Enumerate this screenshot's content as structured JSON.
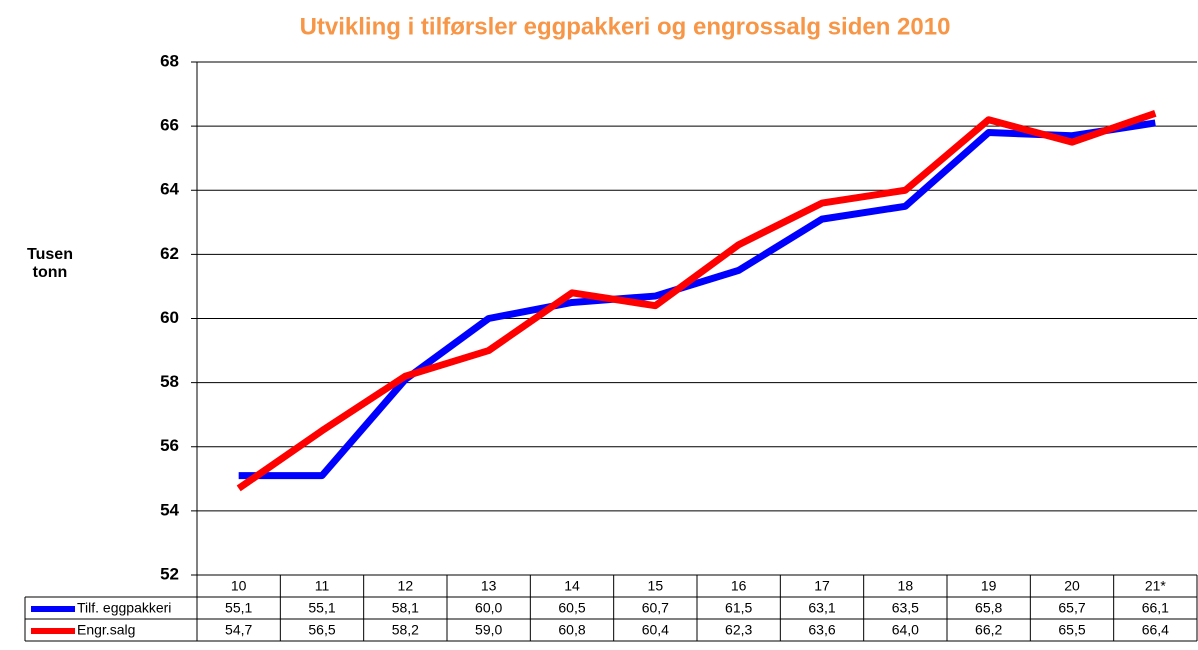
{
  "chart_data": {
    "type": "line",
    "title": "Utvikling i tilførsler eggpakkeri og engrossalg siden 2010",
    "y_label": "Tusen tonn",
    "categories": [
      "10",
      "11",
      "12",
      "13",
      "14",
      "15",
      "16",
      "17",
      "18",
      "19",
      "20",
      "21*"
    ],
    "series": [
      {
        "name": "Tilf. eggpakkeri",
        "color": "#0000ff",
        "values": [
          55.1,
          55.1,
          58.1,
          60.0,
          60.5,
          60.7,
          61.5,
          63.1,
          63.5,
          65.8,
          65.7,
          66.1
        ],
        "value_labels": [
          "55,1",
          "55,1",
          "58,1",
          "60,0",
          "60,5",
          "60,7",
          "61,5",
          "63,1",
          "63,5",
          "65,8",
          "65,7",
          "66,1"
        ]
      },
      {
        "name": "Engr.salg",
        "color": "#ff0000",
        "values": [
          54.7,
          56.5,
          58.2,
          59.0,
          60.8,
          60.4,
          62.3,
          63.6,
          64.0,
          66.2,
          65.5,
          66.4
        ],
        "value_labels": [
          "54,7",
          "56,5",
          "58,2",
          "59,0",
          "60,8",
          "60,4",
          "62,3",
          "63,6",
          "64,0",
          "66,2",
          "65,5",
          "66,4"
        ]
      }
    ],
    "ylim": [
      52,
      68
    ],
    "yticks": [
      52,
      54,
      56,
      58,
      60,
      62,
      64,
      66,
      68
    ],
    "grid": true,
    "data_table": true
  }
}
